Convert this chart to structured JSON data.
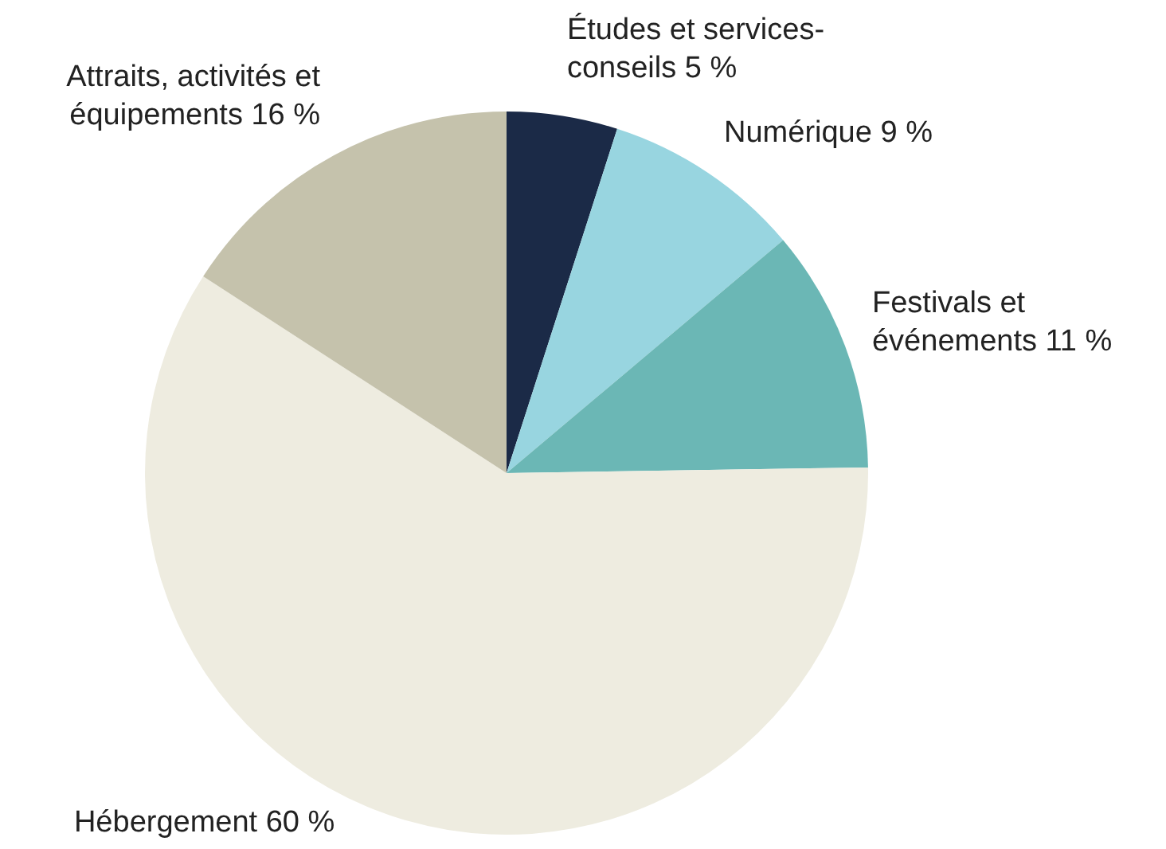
{
  "chart_data": {
    "type": "pie",
    "categories": [
      "Études et services-conseils",
      "Numérique",
      "Festivals et événements",
      "Hébergement",
      "Attraits, activités et équipements"
    ],
    "values": [
      5,
      9,
      11,
      60,
      16
    ],
    "value_labels": [
      "5 %",
      "9 %",
      "11 %",
      "60 %",
      "16 %"
    ],
    "colors": [
      "#1b2a47",
      "#98d5e0",
      "#6bb7b5",
      "#eeece0",
      "#c5c2ac"
    ],
    "legend": false
  }
}
